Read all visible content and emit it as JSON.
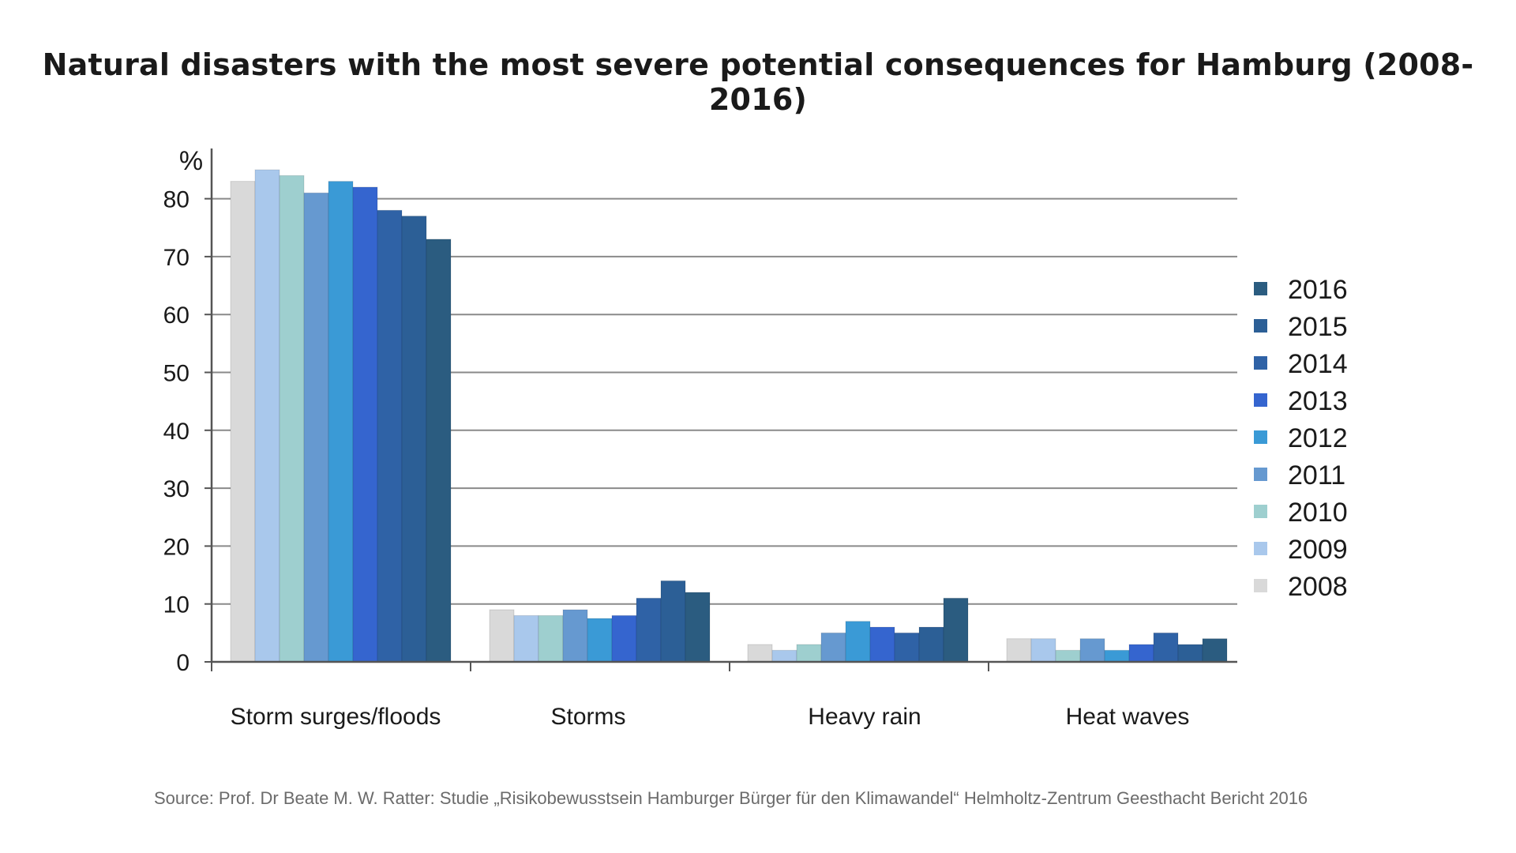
{
  "chart_data": {
    "type": "bar",
    "title": "Natural disasters with the most severe potential consequences for Hamburg (2008-2016)",
    "ylabel": "%",
    "xlabel": "",
    "ylim": [
      0,
      88
    ],
    "yticks": [
      0,
      10,
      20,
      30,
      40,
      50,
      60,
      70,
      80
    ],
    "grid": true,
    "legend_position": "right",
    "categories": [
      "Storm surges/floods",
      "Storms",
      "Heavy rain",
      "Heat waves"
    ],
    "series": [
      {
        "name": "2008",
        "color": "#d9d9d9",
        "values": [
          83,
          9,
          3,
          4
        ]
      },
      {
        "name": "2009",
        "color": "#a9c8ec",
        "values": [
          85,
          8,
          2,
          4
        ]
      },
      {
        "name": "2010",
        "color": "#9ecfcf",
        "values": [
          84,
          8,
          3,
          2
        ]
      },
      {
        "name": "2011",
        "color": "#6699d0",
        "values": [
          81,
          9,
          5,
          4
        ]
      },
      {
        "name": "2012",
        "color": "#3a9ad6",
        "values": [
          83,
          7.5,
          7,
          2
        ]
      },
      {
        "name": "2013",
        "color": "#3565cf",
        "values": [
          82,
          8,
          6,
          3
        ]
      },
      {
        "name": "2014",
        "color": "#2f62a6",
        "values": [
          78,
          11,
          5,
          5
        ]
      },
      {
        "name": "2015",
        "color": "#2c5f96",
        "values": [
          77,
          14,
          6,
          3
        ]
      },
      {
        "name": "2016",
        "color": "#2b5c80",
        "values": [
          73,
          12,
          11,
          4
        ]
      }
    ],
    "legend_order": [
      "2016",
      "2015",
      "2014",
      "2013",
      "2012",
      "2011",
      "2010",
      "2009",
      "2008"
    ],
    "source": "Source: Prof. Dr Beate M. W. Ratter: Studie „Risikobewusstsein Hamburger Bürger für den Klimawandel“ Helmholtz-Zentrum Geesthacht Bericht 2016"
  }
}
